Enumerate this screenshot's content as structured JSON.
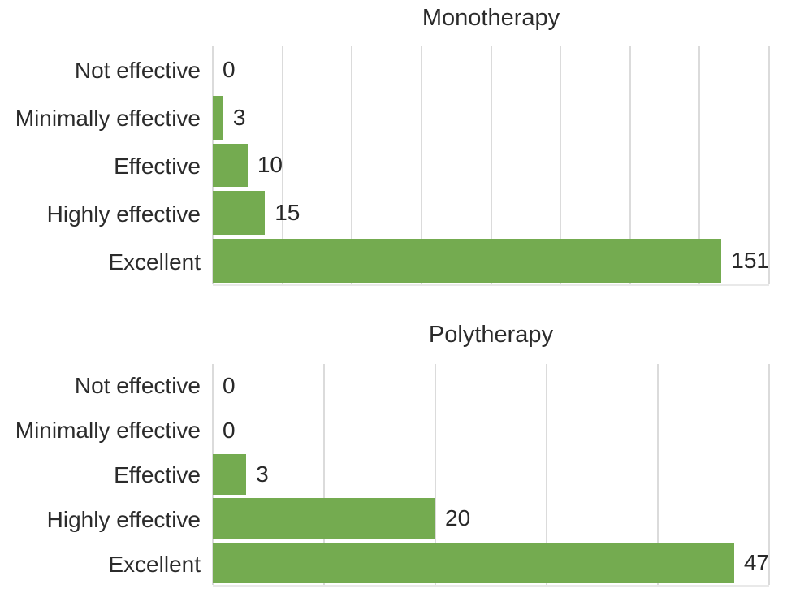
{
  "figure": {
    "background": "#ffffff"
  },
  "colors": {
    "bar": "#74ab50",
    "gridline": "#dbdbdb",
    "text": "#2b2b2b",
    "baseline": "#e9e9e9"
  },
  "chart_data": [
    {
      "type": "bar",
      "orientation": "horizontal",
      "title": "Monotherapy",
      "categories": [
        "Not effective",
        "Minimally effective",
        "Effective",
        "Highly effective",
        "Excellent"
      ],
      "values": [
        0,
        3,
        10,
        15,
        151
      ],
      "value_labels": [
        "0",
        "3",
        "10",
        "15",
        "151"
      ],
      "xlim": [
        0,
        160
      ],
      "grid_step": 20,
      "grid": "vertical-only",
      "axis_tick_labels": "none",
      "legend": "none"
    },
    {
      "type": "bar",
      "orientation": "horizontal",
      "title": "Polytherapy",
      "categories": [
        "Not effective",
        "Minimally effective",
        "Effective",
        "Highly effective",
        "Excellent"
      ],
      "values": [
        0,
        0,
        3,
        20,
        47
      ],
      "value_labels": [
        "0",
        "0",
        "3",
        "20",
        "47"
      ],
      "xlim": [
        0,
        50
      ],
      "grid_step": 10,
      "grid": "vertical-only",
      "axis_tick_labels": "none",
      "legend": "none"
    }
  ]
}
